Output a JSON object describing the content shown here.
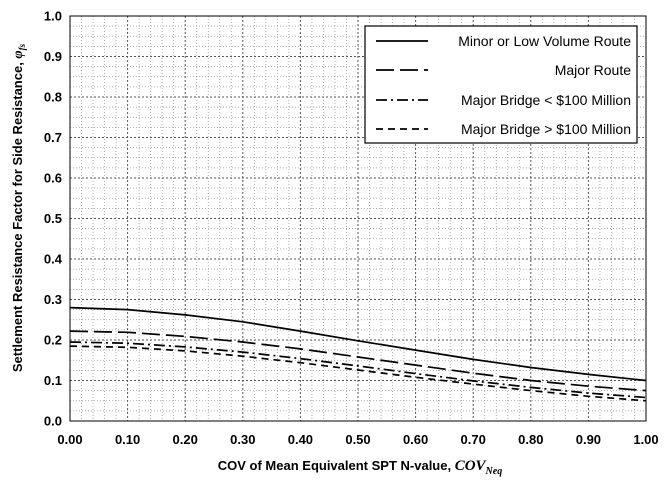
{
  "chart_data": {
    "type": "line",
    "xlabel": "COV of Mean Equivalent SPT N-value, ",
    "xlabel_symbol": "COV",
    "xlabel_sub": "Neq",
    "ylabel": "Settlement Resistance Factor for Side Resistance, ",
    "ylabel_symbol": "φ",
    "ylabel_sub": "fs",
    "xlim": [
      0,
      1
    ],
    "ylim": [
      0,
      1
    ],
    "x_ticks": [
      "0.00",
      "0.10",
      "0.20",
      "0.30",
      "0.40",
      "0.50",
      "0.60",
      "0.70",
      "0.80",
      "0.90",
      "1.00"
    ],
    "y_ticks": [
      "0.0",
      "0.1",
      "0.2",
      "0.3",
      "0.4",
      "0.5",
      "0.6",
      "0.7",
      "0.8",
      "0.9",
      "1.0"
    ],
    "grid": true,
    "legend_position": "top-right",
    "x": [
      0.0,
      0.1,
      0.2,
      0.3,
      0.4,
      0.5,
      0.6,
      0.7,
      0.8,
      0.9,
      1.0
    ],
    "series": [
      {
        "name": "Minor or Low Volume Route",
        "style": "solid",
        "values": [
          0.28,
          0.275,
          0.262,
          0.245,
          0.222,
          0.198,
          0.175,
          0.152,
          0.132,
          0.115,
          0.1
        ]
      },
      {
        "name": "Major Route",
        "style": "dashed",
        "values": [
          0.222,
          0.219,
          0.209,
          0.195,
          0.178,
          0.158,
          0.138,
          0.118,
          0.1,
          0.086,
          0.075
        ]
      },
      {
        "name": "Major Bridge < $100 Million",
        "style": "dashdot",
        "values": [
          0.195,
          0.192,
          0.183,
          0.17,
          0.154,
          0.136,
          0.117,
          0.099,
          0.083,
          0.069,
          0.058
        ]
      },
      {
        "name": "Major Bridge > $100 Million",
        "style": "shortdash",
        "values": [
          0.185,
          0.182,
          0.173,
          0.16,
          0.144,
          0.126,
          0.108,
          0.091,
          0.075,
          0.061,
          0.05
        ]
      }
    ]
  }
}
